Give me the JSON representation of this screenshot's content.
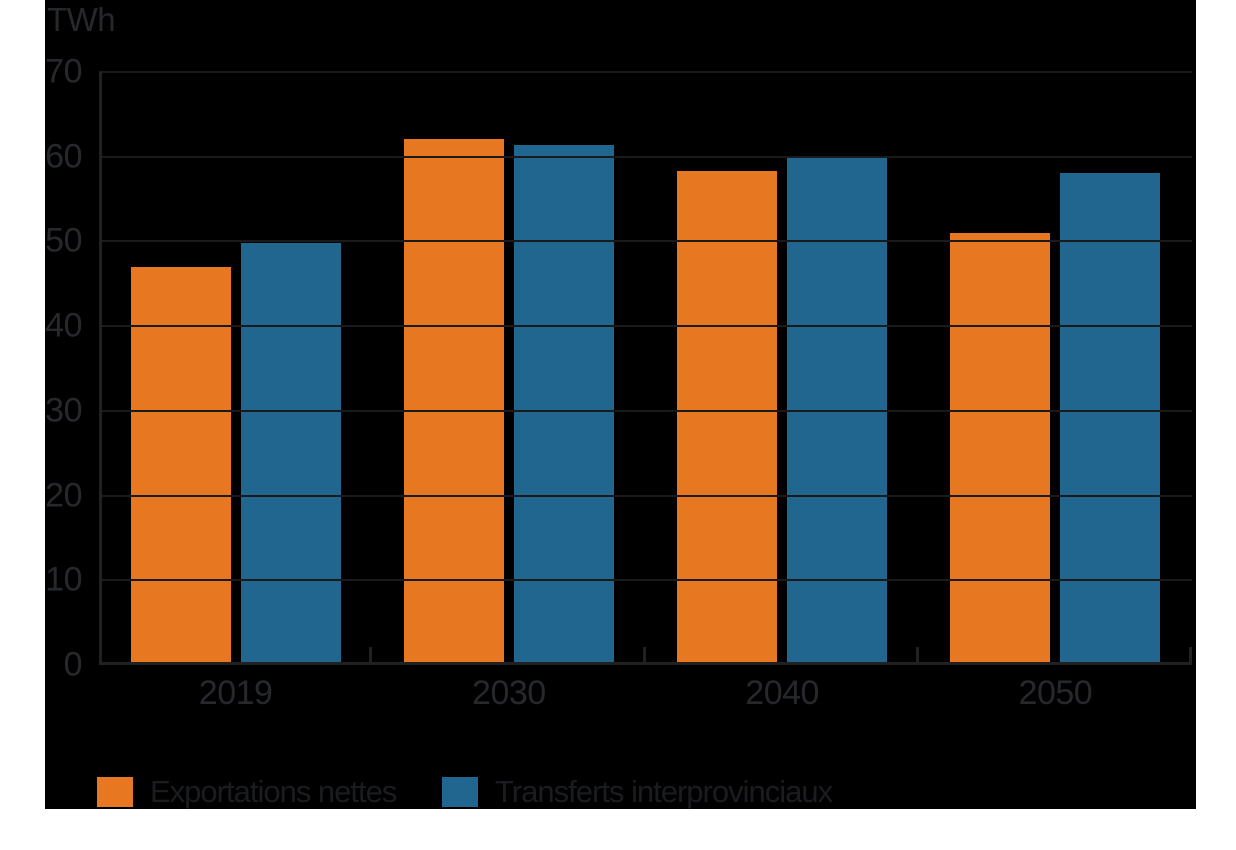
{
  "chart_data": {
    "type": "bar",
    "title": "TWh",
    "unit_label": "TWh",
    "categories": [
      "2019",
      "2030",
      "2040",
      "2050"
    ],
    "series": [
      {
        "name": "Exportations nettes",
        "color": "#e87722",
        "values": [
          47.0,
          62.1,
          58.3,
          51.0
        ]
      },
      {
        "name": "Transferts interprovinciaux",
        "color": "#20668e",
        "values": [
          49.8,
          61.4,
          59.8,
          58.1
        ]
      }
    ],
    "xlabel": "",
    "ylabel": "TWh",
    "ylim": [
      0,
      70
    ],
    "yticks": [
      0,
      10,
      20,
      30,
      40,
      50,
      60,
      70
    ],
    "grid": true,
    "gridlines_drawn_over_bars": true,
    "legend_position": "bottom-left",
    "colors": {
      "page_background": "#ffffff",
      "chart_background": "#000000",
      "gridline": "#1a1a1a",
      "axis": "#212121",
      "tick_label_text": "#26282b",
      "legend_text": "#1a1c1f",
      "unit_label_text": "#26282b"
    }
  }
}
